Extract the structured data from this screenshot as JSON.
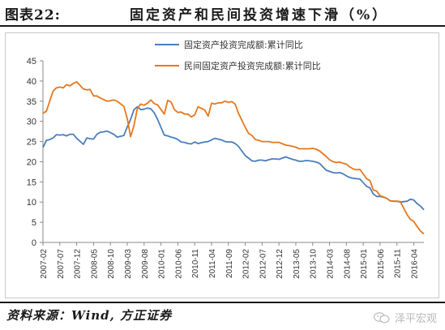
{
  "header": {
    "figure_label": "图表22:",
    "title": "固定资产和民间投资增速下滑（%）"
  },
  "footer": {
    "source": "资料来源：Wind, 方正证券",
    "watermark": "泽平宏观",
    "watermark_icon": "wechat-icon"
  },
  "colors": {
    "series_total": "#4a7ebb",
    "series_private": "#e8771d",
    "axis": "#888888",
    "text": "#333333"
  },
  "chart_data": {
    "type": "line",
    "title": "",
    "xlabel": "",
    "ylabel": "",
    "ylim": [
      0,
      45
    ],
    "yticks": [
      0,
      5,
      10,
      15,
      20,
      25,
      30,
      35,
      40,
      45
    ],
    "grid": false,
    "legend_position": "top",
    "x_tick_labels": [
      "2007-02",
      "2007-07",
      "2007-12",
      "2008-05",
      "2008-10",
      "2009-03",
      "2009-08",
      "2010-01",
      "2010-06",
      "2010-11",
      "2011-04",
      "2011-09",
      "2012-02",
      "2012-07",
      "2012-12",
      "2013-05",
      "2013-10",
      "2014-03",
      "2014-08",
      "2015-01",
      "2015-06",
      "2015-11",
      "2016-04"
    ],
    "x_start": "2007-02",
    "series": [
      {
        "name": "固定资产投资完成额:累计同比",
        "color": "#4a7ebb",
        "points": [
          [
            "2007-02",
            23.5
          ],
          [
            "2007-03",
            25.3
          ],
          [
            "2007-04",
            25.5
          ],
          [
            "2007-05",
            25.9
          ],
          [
            "2007-06",
            26.7
          ],
          [
            "2007-07",
            26.6
          ],
          [
            "2007-08",
            26.7
          ],
          [
            "2007-09",
            26.4
          ],
          [
            "2007-10",
            26.8
          ],
          [
            "2007-11",
            26.8
          ],
          [
            "2007-12",
            25.8
          ],
          [
            "2008-02",
            24.3
          ],
          [
            "2008-03",
            25.9
          ],
          [
            "2008-04",
            25.7
          ],
          [
            "2008-05",
            25.6
          ],
          [
            "2008-06",
            26.8
          ],
          [
            "2008-07",
            27.3
          ],
          [
            "2008-08",
            27.4
          ],
          [
            "2008-09",
            27.6
          ],
          [
            "2008-10",
            27.2
          ],
          [
            "2008-11",
            26.8
          ],
          [
            "2008-12",
            26.1
          ],
          [
            "2009-02",
            26.5
          ],
          [
            "2009-03",
            28.6
          ],
          [
            "2009-04",
            30.5
          ],
          [
            "2009-05",
            32.9
          ],
          [
            "2009-06",
            33.6
          ],
          [
            "2009-07",
            32.9
          ],
          [
            "2009-08",
            33.0
          ],
          [
            "2009-09",
            33.3
          ],
          [
            "2009-10",
            33.1
          ],
          [
            "2009-11",
            32.1
          ],
          [
            "2009-12",
            30.5
          ],
          [
            "2010-02",
            26.6
          ],
          [
            "2010-03",
            26.4
          ],
          [
            "2010-04",
            26.1
          ],
          [
            "2010-05",
            25.9
          ],
          [
            "2010-06",
            25.5
          ],
          [
            "2010-07",
            24.9
          ],
          [
            "2010-08",
            24.8
          ],
          [
            "2010-09",
            24.5
          ],
          [
            "2010-10",
            24.4
          ],
          [
            "2010-11",
            24.9
          ],
          [
            "2010-12",
            24.5
          ],
          [
            "2011-02",
            24.9
          ],
          [
            "2011-03",
            25.0
          ],
          [
            "2011-04",
            25.4
          ],
          [
            "2011-05",
            25.8
          ],
          [
            "2011-06",
            25.6
          ],
          [
            "2011-07",
            25.4
          ],
          [
            "2011-08",
            25.0
          ],
          [
            "2011-09",
            24.9
          ],
          [
            "2011-10",
            24.9
          ],
          [
            "2011-11",
            24.5
          ],
          [
            "2011-12",
            23.8
          ],
          [
            "2012-02",
            21.5
          ],
          [
            "2012-03",
            20.9
          ],
          [
            "2012-04",
            20.2
          ],
          [
            "2012-05",
            20.1
          ],
          [
            "2012-06",
            20.4
          ],
          [
            "2012-07",
            20.4
          ],
          [
            "2012-08",
            20.2
          ],
          [
            "2012-09",
            20.5
          ],
          [
            "2012-10",
            20.7
          ],
          [
            "2012-11",
            20.7
          ],
          [
            "2012-12",
            20.6
          ],
          [
            "2013-02",
            21.2
          ],
          [
            "2013-03",
            20.9
          ],
          [
            "2013-04",
            20.6
          ],
          [
            "2013-05",
            20.4
          ],
          [
            "2013-06",
            20.1
          ],
          [
            "2013-07",
            20.1
          ],
          [
            "2013-08",
            20.3
          ],
          [
            "2013-09",
            20.2
          ],
          [
            "2013-10",
            20.1
          ],
          [
            "2013-11",
            19.9
          ],
          [
            "2013-12",
            19.6
          ],
          [
            "2014-02",
            17.9
          ],
          [
            "2014-03",
            17.6
          ],
          [
            "2014-04",
            17.3
          ],
          [
            "2014-05",
            17.2
          ],
          [
            "2014-06",
            17.3
          ],
          [
            "2014-07",
            17.0
          ],
          [
            "2014-08",
            16.5
          ],
          [
            "2014-09",
            16.1
          ],
          [
            "2014-10",
            15.9
          ],
          [
            "2014-11",
            15.8
          ],
          [
            "2014-12",
            15.7
          ],
          [
            "2015-02",
            13.9
          ],
          [
            "2015-03",
            13.5
          ],
          [
            "2015-04",
            12.0
          ],
          [
            "2015-05",
            11.4
          ],
          [
            "2015-06",
            11.4
          ],
          [
            "2015-07",
            11.2
          ],
          [
            "2015-08",
            10.9
          ],
          [
            "2015-09",
            10.3
          ],
          [
            "2015-10",
            10.2
          ],
          [
            "2015-11",
            10.2
          ],
          [
            "2015-12",
            10.0
          ],
          [
            "2016-02",
            10.2
          ],
          [
            "2016-03",
            10.7
          ],
          [
            "2016-04",
            10.5
          ],
          [
            "2016-05",
            9.6
          ],
          [
            "2016-06",
            9.0
          ],
          [
            "2016-07",
            8.1
          ]
        ]
      },
      {
        "name": "民间固定资产投资完成额:累计同比",
        "color": "#e8771d",
        "points": [
          [
            "2007-02",
            32.0
          ],
          [
            "2007-03",
            32.5
          ],
          [
            "2007-04",
            35.0
          ],
          [
            "2007-05",
            37.5
          ],
          [
            "2007-06",
            38.3
          ],
          [
            "2007-07",
            38.5
          ],
          [
            "2007-08",
            38.3
          ],
          [
            "2007-09",
            39.1
          ],
          [
            "2007-10",
            38.8
          ],
          [
            "2007-11",
            39.4
          ],
          [
            "2007-12",
            39.8
          ],
          [
            "2008-02",
            38.0
          ],
          [
            "2008-03",
            37.8
          ],
          [
            "2008-04",
            37.9
          ],
          [
            "2008-05",
            36.3
          ],
          [
            "2008-06",
            36.3
          ],
          [
            "2008-07",
            35.8
          ],
          [
            "2008-08",
            35.4
          ],
          [
            "2008-09",
            35.0
          ],
          [
            "2008-10",
            35.1
          ],
          [
            "2008-11",
            35.3
          ],
          [
            "2008-12",
            35.0
          ],
          [
            "2009-02",
            33.7
          ],
          [
            "2009-03",
            30.7
          ],
          [
            "2009-04",
            26.2
          ],
          [
            "2009-05",
            29.0
          ],
          [
            "2009-06",
            33.2
          ],
          [
            "2009-07",
            34.3
          ],
          [
            "2009-08",
            34.0
          ],
          [
            "2009-09",
            34.5
          ],
          [
            "2009-10",
            35.3
          ],
          [
            "2009-11",
            34.4
          ],
          [
            "2009-12",
            34.1
          ],
          [
            "2010-02",
            31.8
          ],
          [
            "2010-03",
            35.2
          ],
          [
            "2010-04",
            34.8
          ],
          [
            "2010-05",
            32.9
          ],
          [
            "2010-06",
            32.2
          ],
          [
            "2010-07",
            32.3
          ],
          [
            "2010-08",
            31.8
          ],
          [
            "2010-09",
            31.8
          ],
          [
            "2010-10",
            31.1
          ],
          [
            "2010-11",
            31.6
          ],
          [
            "2010-12",
            33.6
          ],
          [
            "2011-02",
            32.8
          ],
          [
            "2011-03",
            31.3
          ],
          [
            "2011-04",
            34.5
          ],
          [
            "2011-05",
            34.3
          ],
          [
            "2011-06",
            34.6
          ],
          [
            "2011-07",
            34.6
          ],
          [
            "2011-08",
            35.0
          ],
          [
            "2011-09",
            34.7
          ],
          [
            "2011-10",
            34.9
          ],
          [
            "2011-11",
            34.3
          ],
          [
            "2011-12",
            32.0
          ],
          [
            "2012-02",
            28.5
          ],
          [
            "2012-03",
            27.0
          ],
          [
            "2012-04",
            26.5
          ],
          [
            "2012-05",
            25.5
          ],
          [
            "2012-06",
            25.3
          ],
          [
            "2012-07",
            25.0
          ],
          [
            "2012-08",
            25.0
          ],
          [
            "2012-09",
            25.0
          ],
          [
            "2012-10",
            24.8
          ],
          [
            "2012-11",
            24.8
          ],
          [
            "2012-12",
            24.8
          ],
          [
            "2013-02",
            24.1
          ],
          [
            "2013-03",
            24.0
          ],
          [
            "2013-04",
            23.8
          ],
          [
            "2013-05",
            23.6
          ],
          [
            "2013-06",
            23.2
          ],
          [
            "2013-07",
            23.2
          ],
          [
            "2013-08",
            23.2
          ],
          [
            "2013-09",
            23.2
          ],
          [
            "2013-10",
            23.3
          ],
          [
            "2013-11",
            23.1
          ],
          [
            "2013-12",
            22.7
          ],
          [
            "2014-02",
            21.3
          ],
          [
            "2014-03",
            20.5
          ],
          [
            "2014-04",
            20.0
          ],
          [
            "2014-05",
            19.8
          ],
          [
            "2014-06",
            19.9
          ],
          [
            "2014-07",
            19.6
          ],
          [
            "2014-08",
            19.4
          ],
          [
            "2014-09",
            18.7
          ],
          [
            "2014-10",
            18.2
          ],
          [
            "2014-11",
            18.0
          ],
          [
            "2014-12",
            18.1
          ],
          [
            "2015-02",
            15.8
          ],
          [
            "2015-03",
            15.3
          ],
          [
            "2015-04",
            13.0
          ],
          [
            "2015-05",
            12.7
          ],
          [
            "2015-06",
            11.6
          ],
          [
            "2015-07",
            11.3
          ],
          [
            "2015-08",
            10.9
          ],
          [
            "2015-09",
            10.3
          ],
          [
            "2015-10",
            10.2
          ],
          [
            "2015-11",
            10.2
          ],
          [
            "2015-12",
            10.1
          ],
          [
            "2016-02",
            6.9
          ],
          [
            "2016-03",
            5.7
          ],
          [
            "2016-04",
            5.2
          ],
          [
            "2016-05",
            3.9
          ],
          [
            "2016-06",
            2.8
          ],
          [
            "2016-07",
            2.1
          ]
        ]
      }
    ]
  }
}
